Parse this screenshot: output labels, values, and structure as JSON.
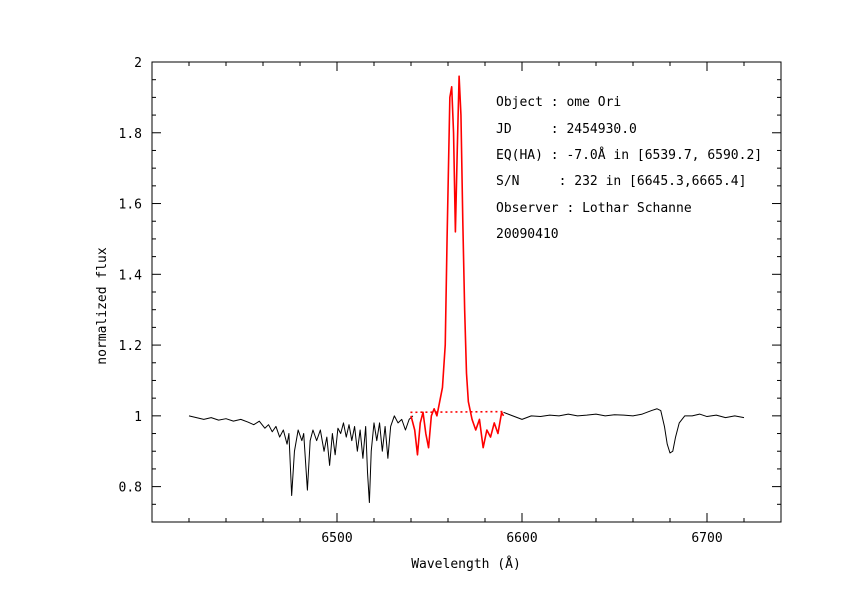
{
  "chart_data": {
    "type": "line",
    "title": "",
    "xlabel": "Wavelength (Å)",
    "ylabel": "normalized flux",
    "xlim": [
      6400,
      6740
    ],
    "ylim": [
      0.7,
      2.0
    ],
    "xticks_major": [
      6500,
      6600,
      6700
    ],
    "xticks_minor_step": 20,
    "yticks_major": [
      0.8,
      1,
      1.2,
      1.4,
      1.6,
      1.8,
      2
    ],
    "yticks_minor_step": 0.05,
    "grid": false,
    "annotations": [
      "Object : ome Ori",
      "JD     : 2454930.0",
      "EQ(HA) : -7.0Å in [6539.7, 6590.2]",
      "S/N     : 232 in [6645.3,6665.4]",
      "Observer : Lothar Schanne",
      "20090410"
    ],
    "series": [
      {
        "color": "#000000",
        "style": "solid",
        "points": [
          [
            6420,
            1.0
          ],
          [
            6424,
            0.995
          ],
          [
            6428,
            0.99
          ],
          [
            6432,
            0.995
          ],
          [
            6436,
            0.988
          ],
          [
            6440,
            0.992
          ],
          [
            6444,
            0.985
          ],
          [
            6448,
            0.99
          ],
          [
            6452,
            0.982
          ],
          [
            6455,
            0.975
          ],
          [
            6458,
            0.985
          ],
          [
            6461,
            0.965
          ],
          [
            6463,
            0.975
          ],
          [
            6465,
            0.955
          ],
          [
            6467,
            0.97
          ],
          [
            6469,
            0.94
          ],
          [
            6471,
            0.96
          ],
          [
            6473,
            0.92
          ],
          [
            6474,
            0.95
          ],
          [
            6475.5,
            0.775
          ],
          [
            6477,
            0.9
          ],
          [
            6479,
            0.96
          ],
          [
            6481,
            0.93
          ],
          [
            6482,
            0.95
          ],
          [
            6484,
            0.79
          ],
          [
            6485.5,
            0.93
          ],
          [
            6487,
            0.96
          ],
          [
            6489,
            0.93
          ],
          [
            6491,
            0.96
          ],
          [
            6493,
            0.9
          ],
          [
            6494.5,
            0.94
          ],
          [
            6496,
            0.86
          ],
          [
            6497.5,
            0.95
          ],
          [
            6499,
            0.89
          ],
          [
            6500.5,
            0.965
          ],
          [
            6502,
            0.95
          ],
          [
            6503.5,
            0.98
          ],
          [
            6505,
            0.94
          ],
          [
            6506.5,
            0.975
          ],
          [
            6508,
            0.93
          ],
          [
            6509.5,
            0.97
          ],
          [
            6511,
            0.9
          ],
          [
            6512.5,
            0.96
          ],
          [
            6514,
            0.88
          ],
          [
            6515.5,
            0.97
          ],
          [
            6516.5,
            0.84
          ],
          [
            6517.5,
            0.755
          ],
          [
            6518.5,
            0.9
          ],
          [
            6520,
            0.98
          ],
          [
            6521.5,
            0.93
          ],
          [
            6523,
            0.98
          ],
          [
            6524.5,
            0.9
          ],
          [
            6526,
            0.97
          ],
          [
            6527.5,
            0.88
          ],
          [
            6529,
            0.97
          ],
          [
            6531,
            1.0
          ],
          [
            6533,
            0.98
          ],
          [
            6535,
            0.99
          ],
          [
            6537,
            0.96
          ],
          [
            6539,
            0.99
          ],
          [
            6541,
            1.0
          ]
        ]
      },
      {
        "color": "#000000",
        "style": "solid",
        "points": [
          [
            6590,
            1.01
          ],
          [
            6595,
            1.0
          ],
          [
            6600,
            0.99
          ],
          [
            6605,
            1.0
          ],
          [
            6610,
            0.998
          ],
          [
            6615,
            1.002
          ],
          [
            6620,
            1.0
          ],
          [
            6625,
            1.005
          ],
          [
            6630,
            1.0
          ],
          [
            6635,
            1.002
          ],
          [
            6640,
            1.005
          ],
          [
            6645,
            1.0
          ],
          [
            6650,
            1.003
          ],
          [
            6655,
            1.002
          ],
          [
            6660,
            1.0
          ],
          [
            6665,
            1.005
          ],
          [
            6670,
            1.015
          ],
          [
            6673,
            1.02
          ],
          [
            6675,
            1.015
          ],
          [
            6677,
            0.97
          ],
          [
            6678.5,
            0.92
          ],
          [
            6680,
            0.895
          ],
          [
            6681.5,
            0.9
          ],
          [
            6683,
            0.94
          ],
          [
            6685,
            0.98
          ],
          [
            6688,
            1.0
          ],
          [
            6692,
            1.0
          ],
          [
            6696,
            1.005
          ],
          [
            6700,
            0.998
          ],
          [
            6705,
            1.002
          ],
          [
            6710,
            0.995
          ],
          [
            6715,
            1.0
          ],
          [
            6720,
            0.995
          ]
        ]
      },
      {
        "color": "#ff0000",
        "style": "solid",
        "points": [
          [
            6540,
            1.0
          ],
          [
            6542,
            0.96
          ],
          [
            6543.5,
            0.89
          ],
          [
            6545,
            0.98
          ],
          [
            6546.5,
            1.01
          ],
          [
            6548,
            0.95
          ],
          [
            6549.5,
            0.91
          ],
          [
            6551,
            1.0
          ],
          [
            6552.5,
            1.02
          ],
          [
            6554,
            1.0
          ],
          [
            6555.5,
            1.04
          ],
          [
            6557,
            1.08
          ],
          [
            6558.5,
            1.2
          ],
          [
            6559.5,
            1.5
          ],
          [
            6561,
            1.9
          ],
          [
            6562,
            1.93
          ],
          [
            6563,
            1.8
          ],
          [
            6564,
            1.52
          ],
          [
            6565,
            1.75
          ],
          [
            6566,
            1.96
          ],
          [
            6567,
            1.85
          ],
          [
            6568,
            1.55
          ],
          [
            6569,
            1.3
          ],
          [
            6570,
            1.12
          ],
          [
            6571,
            1.04
          ],
          [
            6573,
            0.99
          ],
          [
            6575,
            0.96
          ],
          [
            6577,
            0.99
          ],
          [
            6579,
            0.91
          ],
          [
            6581,
            0.96
          ],
          [
            6583,
            0.94
          ],
          [
            6585,
            0.98
          ],
          [
            6587,
            0.95
          ],
          [
            6589,
            1.01
          ],
          [
            6590,
            1.0
          ]
        ]
      },
      {
        "color": "#ff0000",
        "style": "dotted",
        "points": [
          [
            6539.7,
            1.01
          ],
          [
            6590.2,
            1.012
          ]
        ]
      }
    ]
  }
}
